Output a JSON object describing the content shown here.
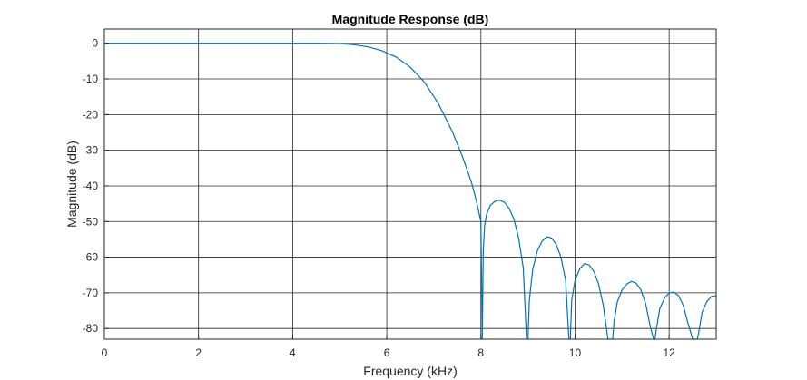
{
  "chart_data": {
    "type": "line",
    "title": "Magnitude Response (dB)",
    "xlabel": "Frequency (kHz)",
    "ylabel": "Magnitude (dB)",
    "xlim": [
      0,
      13
    ],
    "ylim": [
      -83,
      4
    ],
    "grid": true,
    "legend": "none",
    "x_ticks": [
      0,
      2,
      4,
      6,
      8,
      10,
      12
    ],
    "y_ticks": [
      0,
      -10,
      -20,
      -30,
      -40,
      -50,
      -60,
      -70,
      -80
    ],
    "series": [
      {
        "color": "#0072BD",
        "x": [
          0,
          1,
          2,
          3,
          4,
          4.5,
          5.0,
          5.3,
          5.6,
          5.9,
          6.2,
          6.5,
          6.8,
          7.1,
          7.4,
          7.6,
          7.8,
          7.9,
          8.0,
          8.03,
          8.05,
          8.08,
          8.12,
          8.2,
          8.3,
          8.4,
          8.5,
          8.6,
          8.7,
          8.8,
          8.9,
          8.97,
          9.0,
          9.03,
          9.1,
          9.2,
          9.3,
          9.4,
          9.5,
          9.6,
          9.7,
          9.8,
          9.87,
          9.9,
          9.93,
          10.0,
          10.1,
          10.2,
          10.3,
          10.4,
          10.5,
          10.6,
          10.7,
          10.77,
          10.8,
          10.83,
          10.9,
          11.0,
          11.1,
          11.2,
          11.3,
          11.4,
          11.5,
          11.6,
          11.67,
          11.7,
          11.73,
          11.8,
          11.9,
          12.0,
          12.1,
          12.2,
          12.3,
          12.4,
          12.5,
          12.56,
          12.6,
          12.63,
          12.7,
          12.8,
          12.9,
          13.0
        ],
        "y": [
          0,
          0,
          0,
          0,
          0,
          0,
          -0.1,
          -0.4,
          -1.0,
          -2.1,
          -3.9,
          -6.7,
          -10.9,
          -17.0,
          -25.0,
          -31.5,
          -39.0,
          -44.0,
          -50.0,
          -83,
          -58,
          -51,
          -48,
          -45.5,
          -44.3,
          -44.0,
          -44.6,
          -46.3,
          -49.3,
          -54.5,
          -63.0,
          -83,
          -83,
          -72,
          -63.5,
          -58.2,
          -55.5,
          -54.3,
          -54.6,
          -56.4,
          -60.0,
          -66.5,
          -83,
          -83,
          -72,
          -66.5,
          -63.3,
          -61.8,
          -62.2,
          -64.0,
          -67.5,
          -73.5,
          -83,
          -83,
          -83,
          -78,
          -72.5,
          -69.2,
          -67.5,
          -66.8,
          -67.3,
          -69.2,
          -73.0,
          -79.5,
          -83,
          -83,
          -80,
          -74.5,
          -71.5,
          -70.0,
          -69.8,
          -70.8,
          -73.5,
          -78.5,
          -83,
          -83,
          -83,
          -81,
          -75.5,
          -72.5,
          -71.0,
          -70.8
        ]
      }
    ]
  }
}
